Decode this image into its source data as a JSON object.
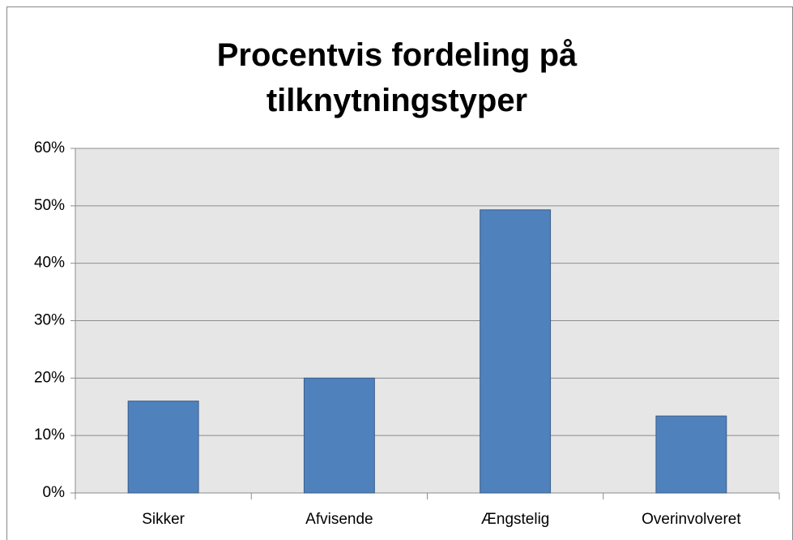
{
  "chart_data": {
    "type": "bar",
    "title": "Procentvis fordeling på tilknytningstyper",
    "categories": [
      "Sikker",
      "Afvisende",
      "Ængstelig",
      "Overinvolveret"
    ],
    "values": [
      16,
      20,
      49.3,
      13.4
    ],
    "color": "#4f81bd",
    "ylim": [
      0,
      60
    ],
    "yticks": [
      {
        "value": 0,
        "label": "0%"
      },
      {
        "value": 10,
        "label": "10%"
      },
      {
        "value": 20,
        "label": "20%"
      },
      {
        "value": 30,
        "label": "30%"
      },
      {
        "value": 40,
        "label": "40%"
      },
      {
        "value": 50,
        "label": "50%"
      },
      {
        "value": 60,
        "label": "60%"
      }
    ],
    "grid": true
  }
}
